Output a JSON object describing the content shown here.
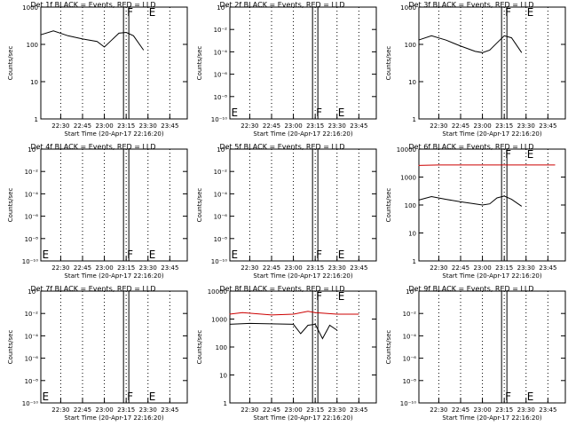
{
  "chart_data": [
    {
      "type": "line",
      "title": "Det 1f BLACK = Events, RED = LLD",
      "ylabel": "Counts/sec",
      "xlabel": "Start Time (20-Apr-17 22:16:20)",
      "scale": "log",
      "ylim": [
        1,
        1000
      ],
      "yticks": [
        "1",
        "10",
        "100",
        "1000"
      ],
      "xticks": [
        "22:30",
        "22:45",
        "23:00",
        "23:15",
        "23:30",
        "23:45"
      ],
      "markers": {
        "F": "23:15",
        "E": "23:30"
      },
      "series": [
        {
          "color": "#000000",
          "points": [
            [
              "22:16",
              180
            ],
            [
              "22:25",
              230
            ],
            [
              "22:35",
              170
            ],
            [
              "22:45",
              140
            ],
            [
              "22:55",
              120
            ],
            [
              "23:00",
              85
            ],
            [
              "23:05",
              130
            ],
            [
              "23:10",
              200
            ],
            [
              "23:15",
              210
            ],
            [
              "23:20",
              170
            ],
            [
              "23:27",
              70
            ]
          ]
        }
      ]
    },
    {
      "type": "line",
      "title": "Det 2f BLACK = Events, RED = LLD",
      "ylabel": "Counts/sec",
      "xlabel": "Start Time (20-Apr-17 22:16:20)",
      "scale": "log",
      "ylim": [
        1e-10,
        1
      ],
      "yticks": [
        "10⁻¹⁰",
        "10⁻⁸",
        "10⁻⁶",
        "10⁻⁴",
        "10⁻²",
        "10⁰"
      ],
      "xticks": [
        "22:30",
        "22:45",
        "23:00",
        "23:15",
        "23:30",
        "23:45"
      ],
      "markers": {
        "E": "22:16",
        "F": "23:15",
        "E2": "23:30"
      },
      "series": []
    },
    {
      "type": "line",
      "title": "Det 3f BLACK = Events, RED = LLD",
      "ylabel": "Counts/sec",
      "xlabel": "Start Time (20-Apr-17 22:16:20)",
      "scale": "log",
      "ylim": [
        1,
        1000
      ],
      "yticks": [
        "1",
        "10",
        "100",
        "1000"
      ],
      "xticks": [
        "22:30",
        "22:45",
        "23:00",
        "23:15",
        "23:30",
        "23:45"
      ],
      "markers": {
        "F": "23:15",
        "E": "23:30"
      },
      "series": [
        {
          "color": "#000000",
          "points": [
            [
              "22:16",
              130
            ],
            [
              "22:25",
              170
            ],
            [
              "22:35",
              130
            ],
            [
              "22:45",
              90
            ],
            [
              "22:55",
              65
            ],
            [
              "23:00",
              60
            ],
            [
              "23:05",
              70
            ],
            [
              "23:10",
              110
            ],
            [
              "23:15",
              170
            ],
            [
              "23:20",
              150
            ],
            [
              "23:27",
              60
            ]
          ]
        }
      ]
    },
    {
      "type": "line",
      "title": "Det 4f BLACK = Events, RED = LLD",
      "ylabel": "Counts/sec",
      "xlabel": "Start Time (20-Apr-17 22:16:20)",
      "scale": "log",
      "ylim": [
        1e-10,
        1
      ],
      "yticks": [
        "10⁻¹⁰",
        "10⁻⁸",
        "10⁻⁶",
        "10⁻⁴",
        "10⁻²",
        "10⁰"
      ],
      "xticks": [
        "22:30",
        "22:45",
        "23:00",
        "23:15",
        "23:30",
        "23:45"
      ],
      "markers": {
        "E": "22:16",
        "F": "23:15",
        "E2": "23:30"
      },
      "series": []
    },
    {
      "type": "line",
      "title": "Det 5f BLACK = Events, RED = LLD",
      "ylabel": "Counts/sec",
      "xlabel": "Start Time (20-Apr-17 22:16:20)",
      "scale": "log",
      "ylim": [
        1e-10,
        1
      ],
      "yticks": [
        "10⁻¹⁰",
        "10⁻⁸",
        "10⁻⁶",
        "10⁻⁴",
        "10⁻²",
        "10⁰"
      ],
      "xticks": [
        "22:30",
        "22:45",
        "23:00",
        "23:15",
        "23:30",
        "23:45"
      ],
      "markers": {
        "E": "22:16",
        "F": "23:15",
        "E2": "23:30"
      },
      "series": []
    },
    {
      "type": "line",
      "title": "Det 6f BLACK = Events, RED = LLD",
      "ylabel": "Counts/sec",
      "xlabel": "Start Time (20-Apr-17 22:16:20)",
      "scale": "log",
      "ylim": [
        1,
        10000
      ],
      "yticks": [
        "1",
        "10",
        "100",
        "1000",
        "10000"
      ],
      "xticks": [
        "22:30",
        "22:45",
        "23:00",
        "23:15",
        "23:30",
        "23:45"
      ],
      "markers": {
        "F": "23:15",
        "E": "23:30"
      },
      "series": [
        {
          "color": "#000000",
          "points": [
            [
              "22:16",
              150
            ],
            [
              "22:25",
              200
            ],
            [
              "22:35",
              160
            ],
            [
              "22:45",
              130
            ],
            [
              "22:55",
              110
            ],
            [
              "23:00",
              100
            ],
            [
              "23:05",
              110
            ],
            [
              "23:10",
              180
            ],
            [
              "23:15",
              210
            ],
            [
              "23:20",
              160
            ],
            [
              "23:27",
              90
            ]
          ]
        },
        {
          "color": "#cc0000",
          "points": [
            [
              "22:16",
              2600
            ],
            [
              "22:30",
              2700
            ],
            [
              "23:00",
              2700
            ],
            [
              "23:30",
              2700
            ],
            [
              "23:50",
              2700
            ]
          ]
        }
      ]
    },
    {
      "type": "line",
      "title": "Det 7f BLACK = Events, RED = LLD",
      "ylabel": "Counts/sec",
      "xlabel": "Start Time (20-Apr-17 22:16:20)",
      "scale": "log",
      "ylim": [
        1e-10,
        1
      ],
      "yticks": [
        "10⁻¹⁰",
        "10⁻⁸",
        "10⁻⁶",
        "10⁻⁴",
        "10⁻²",
        "10⁰"
      ],
      "xticks": [
        "22:30",
        "22:45",
        "23:00",
        "23:15",
        "23:30",
        "23:45"
      ],
      "markers": {
        "E": "22:16",
        "F": "23:15",
        "E2": "23:30"
      },
      "series": []
    },
    {
      "type": "line",
      "title": "Det 8f BLACK = Events, RED = LLD",
      "ylabel": "Counts/sec",
      "xlabel": "Start Time (20-Apr-17 22:16:20)",
      "scale": "log",
      "ylim": [
        1,
        10000
      ],
      "yticks": [
        "1",
        "10",
        "100",
        "1000",
        "10000"
      ],
      "xticks": [
        "22:30",
        "22:45",
        "23:00",
        "23:15",
        "23:30",
        "23:45"
      ],
      "markers": {
        "F": "23:15",
        "E": "23:30"
      },
      "series": [
        {
          "color": "#000000",
          "points": [
            [
              "22:16",
              650
            ],
            [
              "22:30",
              700
            ],
            [
              "23:00",
              650
            ],
            [
              "23:05",
              300
            ],
            [
              "23:10",
              600
            ],
            [
              "23:15",
              650
            ],
            [
              "23:20",
              200
            ],
            [
              "23:25",
              600
            ],
            [
              "23:30",
              400
            ]
          ]
        },
        {
          "color": "#cc0000",
          "points": [
            [
              "22:16",
              1500
            ],
            [
              "22:25",
              1700
            ],
            [
              "22:45",
              1400
            ],
            [
              "23:00",
              1500
            ],
            [
              "23:10",
              1900
            ],
            [
              "23:15",
              1700
            ],
            [
              "23:30",
              1500
            ],
            [
              "23:45",
              1500
            ]
          ]
        }
      ]
    },
    {
      "type": "line",
      "title": "Det 9f BLACK = Events, RED = LLD",
      "ylabel": "Counts/sec",
      "xlabel": "Start Time (20-Apr-17 22:16:20)",
      "scale": "log",
      "ylim": [
        1e-10,
        1
      ],
      "yticks": [
        "10⁻¹⁰",
        "10⁻⁸",
        "10⁻⁶",
        "10⁻⁴",
        "10⁻²",
        "10⁰"
      ],
      "xticks": [
        "22:30",
        "22:45",
        "23:00",
        "23:15",
        "23:30",
        "23:45"
      ],
      "markers": {
        "F": "23:15",
        "E": "23:30"
      },
      "series": []
    }
  ]
}
